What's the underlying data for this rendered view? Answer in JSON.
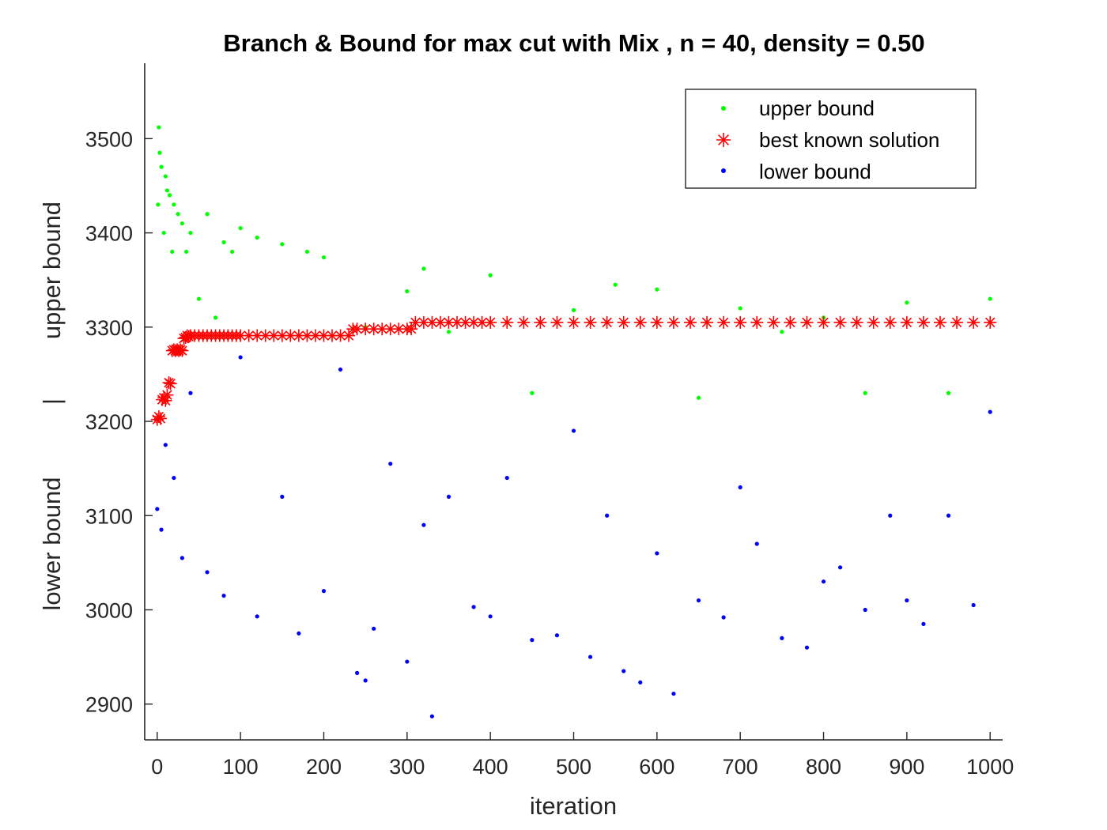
{
  "chart_data": {
    "type": "scatter",
    "title": "Branch & Bound for max cut with Mix , n = 40, density = 0.50",
    "xlabel": "iteration",
    "ylabel_parts": [
      "lower bound",
      "|",
      "upper bound"
    ],
    "xlim": [
      -15,
      1015
    ],
    "ylim": [
      2862,
      3580
    ],
    "xticks": [
      0,
      100,
      200,
      300,
      400,
      500,
      600,
      700,
      800,
      900,
      1000
    ],
    "yticks": [
      2900,
      3000,
      3100,
      3200,
      3300,
      3400,
      3500
    ],
    "xtick_labels": [
      "0",
      "100",
      "200",
      "300",
      "400",
      "500",
      "600",
      "700",
      "800",
      "900",
      "1000"
    ],
    "ytick_labels": [
      "2900",
      "3000",
      "3100",
      "3200",
      "3300",
      "3400",
      "3500"
    ],
    "grid": false,
    "legend_position": "top-right",
    "series": [
      {
        "name": "upper bound",
        "marker": "dot",
        "color": "#00ff00",
        "x": [
          1,
          2,
          3,
          5,
          8,
          10,
          12,
          15,
          18,
          20,
          25,
          30,
          35,
          40,
          50,
          60,
          70,
          80,
          90,
          100,
          120,
          150,
          180,
          200,
          250,
          300,
          320,
          350,
          400,
          450,
          500,
          550,
          600,
          650,
          700,
          750,
          800,
          850,
          900,
          950,
          1000
        ],
        "y": [
          3430,
          3512,
          3485,
          3470,
          3400,
          3460,
          3445,
          3440,
          3380,
          3430,
          3420,
          3410,
          3380,
          3400,
          3330,
          3420,
          3310,
          3390,
          3380,
          3405,
          3395,
          3388,
          3380,
          3374,
          3300,
          3338,
          3362,
          3295,
          3355,
          3230,
          3318,
          3345,
          3340,
          3225,
          3320,
          3295,
          3310,
          3230,
          3326,
          3230,
          3330
        ]
      },
      {
        "name": "best known solution",
        "marker": "asterisk",
        "color": "#ff0000",
        "x": [
          0,
          2,
          4,
          6,
          8,
          10,
          12,
          14,
          16,
          18,
          20,
          22,
          24,
          26,
          28,
          30,
          32,
          34,
          36,
          38,
          40,
          45,
          50,
          55,
          60,
          65,
          70,
          75,
          80,
          85,
          90,
          95,
          100,
          110,
          120,
          130,
          140,
          150,
          160,
          170,
          180,
          190,
          200,
          210,
          220,
          230,
          235,
          240,
          250,
          260,
          270,
          280,
          290,
          300,
          305,
          310,
          320,
          330,
          340,
          350,
          360,
          370,
          380,
          390,
          400,
          420,
          440,
          460,
          480,
          500,
          520,
          540,
          560,
          580,
          600,
          620,
          640,
          660,
          680,
          700,
          720,
          740,
          760,
          780,
          800,
          820,
          840,
          860,
          880,
          900,
          920,
          940,
          960,
          980,
          1000
        ],
        "y": [
          3202,
          3205,
          3203,
          3223,
          3225,
          3222,
          3228,
          3241,
          3240,
          3275,
          3276,
          3275,
          3276,
          3275,
          3276,
          3275,
          3288,
          3289,
          3291,
          3290,
          3291,
          3291,
          3291,
          3291,
          3291,
          3291,
          3291,
          3291,
          3291,
          3291,
          3291,
          3291,
          3291,
          3291,
          3291,
          3291,
          3291,
          3291,
          3291,
          3291,
          3291,
          3291,
          3291,
          3291,
          3291,
          3291,
          3298,
          3298,
          3298,
          3298,
          3298,
          3298,
          3298,
          3298,
          3298,
          3305,
          3305,
          3305,
          3305,
          3305,
          3305,
          3305,
          3305,
          3305,
          3305,
          3305,
          3305,
          3305,
          3305,
          3305,
          3305,
          3305,
          3305,
          3305,
          3305,
          3305,
          3305,
          3305,
          3305,
          3305,
          3305,
          3305,
          3305,
          3305,
          3305,
          3305,
          3305,
          3305,
          3305,
          3305,
          3305,
          3305,
          3305,
          3305,
          3305
        ]
      },
      {
        "name": "lower bound",
        "marker": "dot",
        "color": "#0000ff",
        "x": [
          0,
          5,
          10,
          20,
          30,
          40,
          60,
          80,
          100,
          120,
          150,
          170,
          200,
          220,
          240,
          250,
          260,
          280,
          300,
          320,
          330,
          350,
          380,
          400,
          420,
          450,
          480,
          500,
          520,
          540,
          560,
          580,
          600,
          620,
          650,
          680,
          700,
          720,
          750,
          780,
          800,
          820,
          850,
          880,
          900,
          920,
          950,
          980,
          1000
        ],
        "y": [
          3107,
          3085,
          3175,
          3140,
          3055,
          3230,
          3040,
          3015,
          3268,
          2993,
          3120,
          2975,
          3020,
          3255,
          2933,
          2925,
          2980,
          3155,
          2945,
          3090,
          2887,
          3120,
          3003,
          2993,
          3140,
          2968,
          2973,
          3190,
          2950,
          3100,
          2935,
          2923,
          3060,
          2911,
          3010,
          2992,
          3130,
          3070,
          2970,
          2960,
          3030,
          3045,
          3000,
          3100,
          3010,
          2985,
          3100,
          3005,
          3210
        ]
      }
    ]
  }
}
